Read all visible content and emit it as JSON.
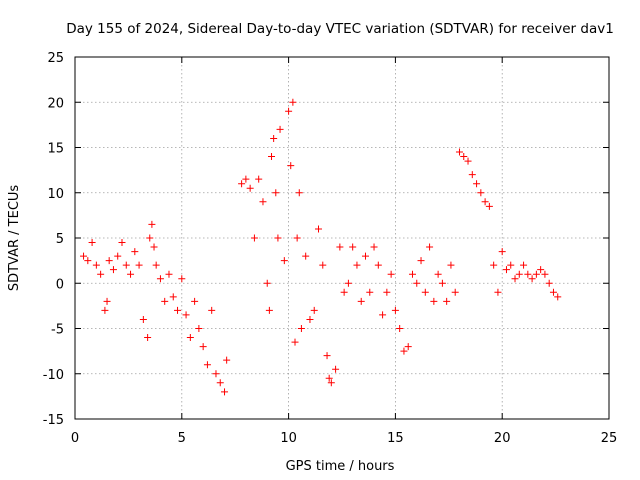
{
  "chart_data": {
    "type": "scatter",
    "title": "Day 155 of 2024, Sidereal Day-to-day VTEC variation (SDTVAR) for receiver dav1",
    "xlabel": "GPS time / hours",
    "ylabel": "SDTVAR / TECUs",
    "xlim": [
      0,
      25
    ],
    "ylim": [
      -15,
      25
    ],
    "xticks": [
      "0",
      "5",
      "10",
      "15",
      "20",
      "25"
    ],
    "yticks": [
      "-15",
      "-10",
      "-5",
      "0",
      "5",
      "10",
      "15",
      "20",
      "25"
    ],
    "grid": true,
    "marker": "+",
    "color": "#ff0000",
    "series": [
      {
        "name": "SDTVAR",
        "x": [
          0.4,
          0.6,
          0.8,
          1.0,
          1.2,
          1.4,
          1.5,
          1.6,
          1.8,
          2.0,
          2.2,
          2.4,
          2.6,
          2.8,
          3.0,
          3.2,
          3.4,
          3.5,
          3.6,
          3.7,
          3.8,
          4.0,
          4.2,
          4.4,
          4.6,
          4.8,
          5.0,
          5.2,
          5.4,
          5.6,
          5.8,
          6.0,
          6.2,
          6.4,
          6.6,
          6.8,
          7.0,
          7.1,
          7.8,
          8.0,
          8.2,
          8.4,
          8.6,
          8.8,
          9.0,
          9.1,
          9.2,
          9.3,
          9.4,
          9.5,
          9.6,
          9.8,
          10.0,
          10.1,
          10.2,
          10.3,
          10.4,
          10.5,
          10.6,
          10.8,
          11.0,
          11.2,
          11.4,
          11.6,
          11.8,
          11.9,
          12.0,
          12.2,
          12.4,
          12.6,
          12.8,
          13.0,
          13.2,
          13.4,
          13.6,
          13.8,
          14.0,
          14.2,
          14.4,
          14.6,
          14.8,
          15.0,
          15.2,
          15.4,
          15.6,
          15.8,
          16.0,
          16.2,
          16.4,
          16.6,
          16.8,
          17.0,
          17.2,
          17.4,
          17.6,
          17.8,
          18.0,
          18.2,
          18.4,
          18.6,
          18.8,
          19.0,
          19.2,
          19.4,
          19.6,
          19.8,
          20.0,
          20.2,
          20.4,
          20.6,
          20.8,
          21.0,
          21.2,
          21.4,
          21.6,
          21.8,
          22.0,
          22.2,
          22.4,
          22.6
        ],
        "y": [
          3.0,
          2.5,
          4.5,
          2.0,
          1.0,
          -3.0,
          -2.0,
          2.5,
          1.5,
          3.0,
          4.5,
          2.0,
          1.0,
          3.5,
          2.0,
          -4.0,
          -6.0,
          5.0,
          6.5,
          4.0,
          2.0,
          0.5,
          -2.0,
          1.0,
          -1.5,
          -3.0,
          0.5,
          -3.5,
          -6.0,
          -2.0,
          -5.0,
          -7.0,
          -9.0,
          -3.0,
          -10.0,
          -11.0,
          -12.0,
          -8.5,
          11.0,
          11.5,
          10.5,
          5.0,
          11.5,
          9.0,
          0.0,
          -3.0,
          14.0,
          16.0,
          10.0,
          5.0,
          17.0,
          2.5,
          19.0,
          13.0,
          20.0,
          -6.5,
          5.0,
          10.0,
          -5.0,
          3.0,
          -4.0,
          -3.0,
          6.0,
          2.0,
          -8.0,
          -10.5,
          -11.0,
          -9.5,
          4.0,
          -1.0,
          0.0,
          4.0,
          2.0,
          -2.0,
          3.0,
          -1.0,
          4.0,
          2.0,
          -3.5,
          -1.0,
          1.0,
          -3.0,
          -5.0,
          -7.5,
          -7.0,
          1.0,
          0.0,
          2.5,
          -1.0,
          4.0,
          -2.0,
          1.0,
          0.0,
          -2.0,
          2.0,
          -1.0,
          14.5,
          14.0,
          13.5,
          12.0,
          11.0,
          10.0,
          9.0,
          8.5,
          2.0,
          -1.0,
          3.5,
          1.5,
          2.0,
          0.5,
          1.0,
          2.0,
          1.0,
          0.5,
          1.0,
          1.5,
          1.0,
          0.0,
          -1.0,
          -1.5
        ]
      }
    ]
  }
}
